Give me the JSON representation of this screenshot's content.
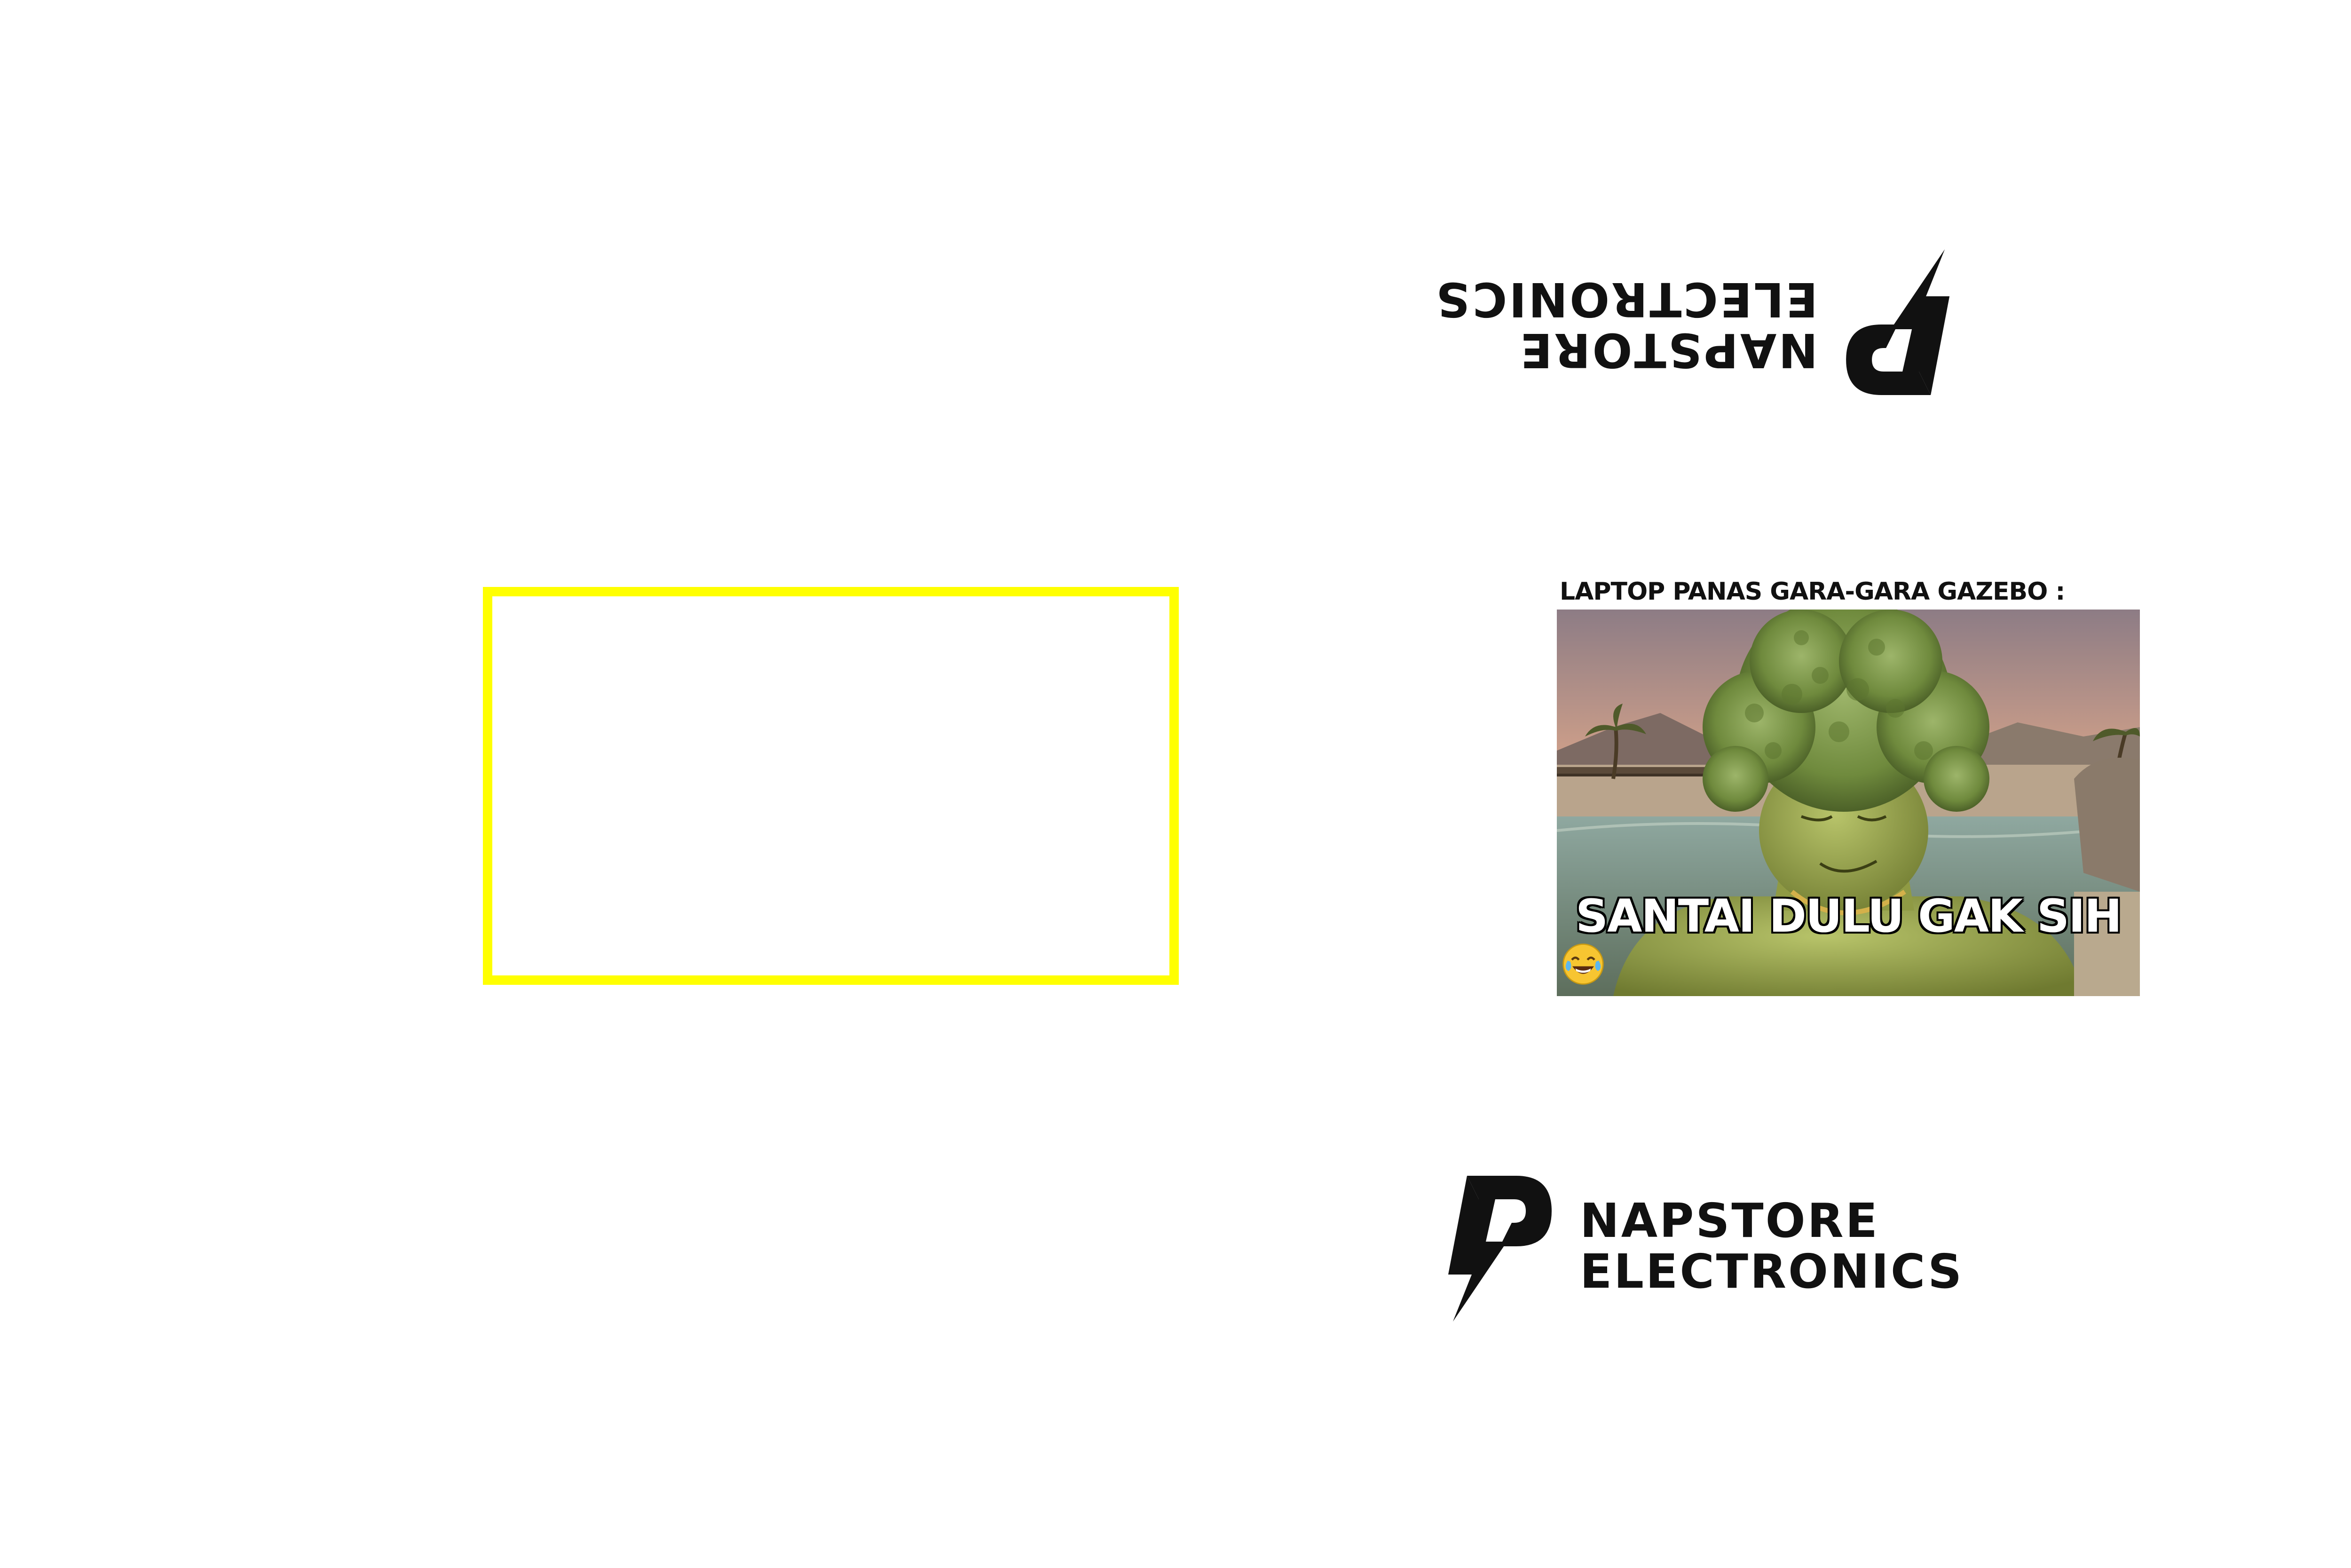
{
  "brand": {
    "name_line1": "NAPSTORE",
    "name_line2": "ELECTRONICS"
  },
  "meme": {
    "caption": "LAPTOP PANAS GARA-GARA GAZEBO :",
    "overlay_text": "SANTAI DULU GAK SIH",
    "emoji": "face-with-tears-of-joy-icon"
  },
  "colors": {
    "frame": "#ffff00",
    "logo": "#111111",
    "background": "#ffffff"
  }
}
